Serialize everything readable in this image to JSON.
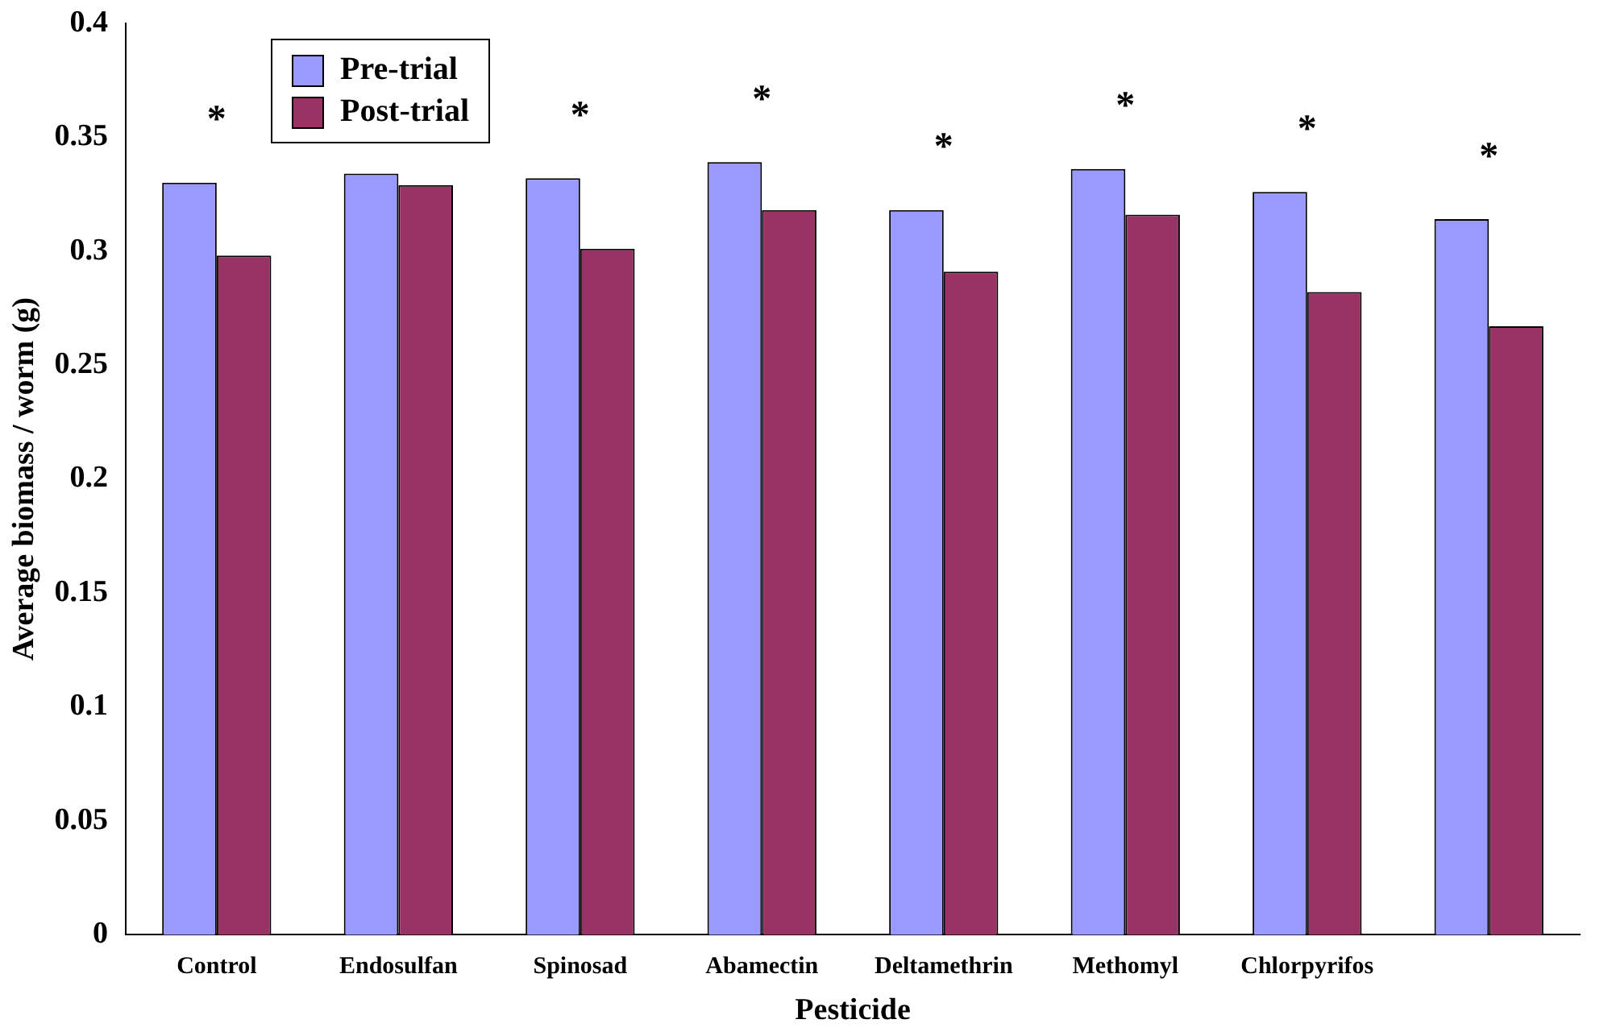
{
  "chart_data": {
    "type": "bar",
    "xlabel": "Pesticide",
    "ylabel": "Average biomass / worm (g)",
    "categories": [
      "Control",
      "Endosulfan",
      "Spinosad",
      "Abamectin",
      "Deltamethrin",
      "Methomyl",
      "Chlorpyrifos",
      null
    ],
    "series": [
      {
        "name": "Pre-trial",
        "color": "#9999ff",
        "values": [
          0.33,
          0.334,
          0.332,
          0.339,
          0.318,
          0.336,
          0.326,
          0.314
        ],
        "value_labels": [
          "*",
          null,
          "*",
          "*",
          "*",
          "*",
          "*",
          "*"
        ]
      },
      {
        "name": "Post-trial",
        "color": "#993366",
        "values": [
          0.298,
          0.329,
          0.301,
          0.318,
          0.291,
          0.316,
          0.282,
          0.267
        ]
      }
    ],
    "ylim": [
      0,
      0.4
    ],
    "yticks": [
      0,
      0.05,
      0.1,
      0.15,
      0.2,
      0.25,
      0.3,
      0.35,
      0.4
    ],
    "grid": false,
    "legend": "top left"
  }
}
